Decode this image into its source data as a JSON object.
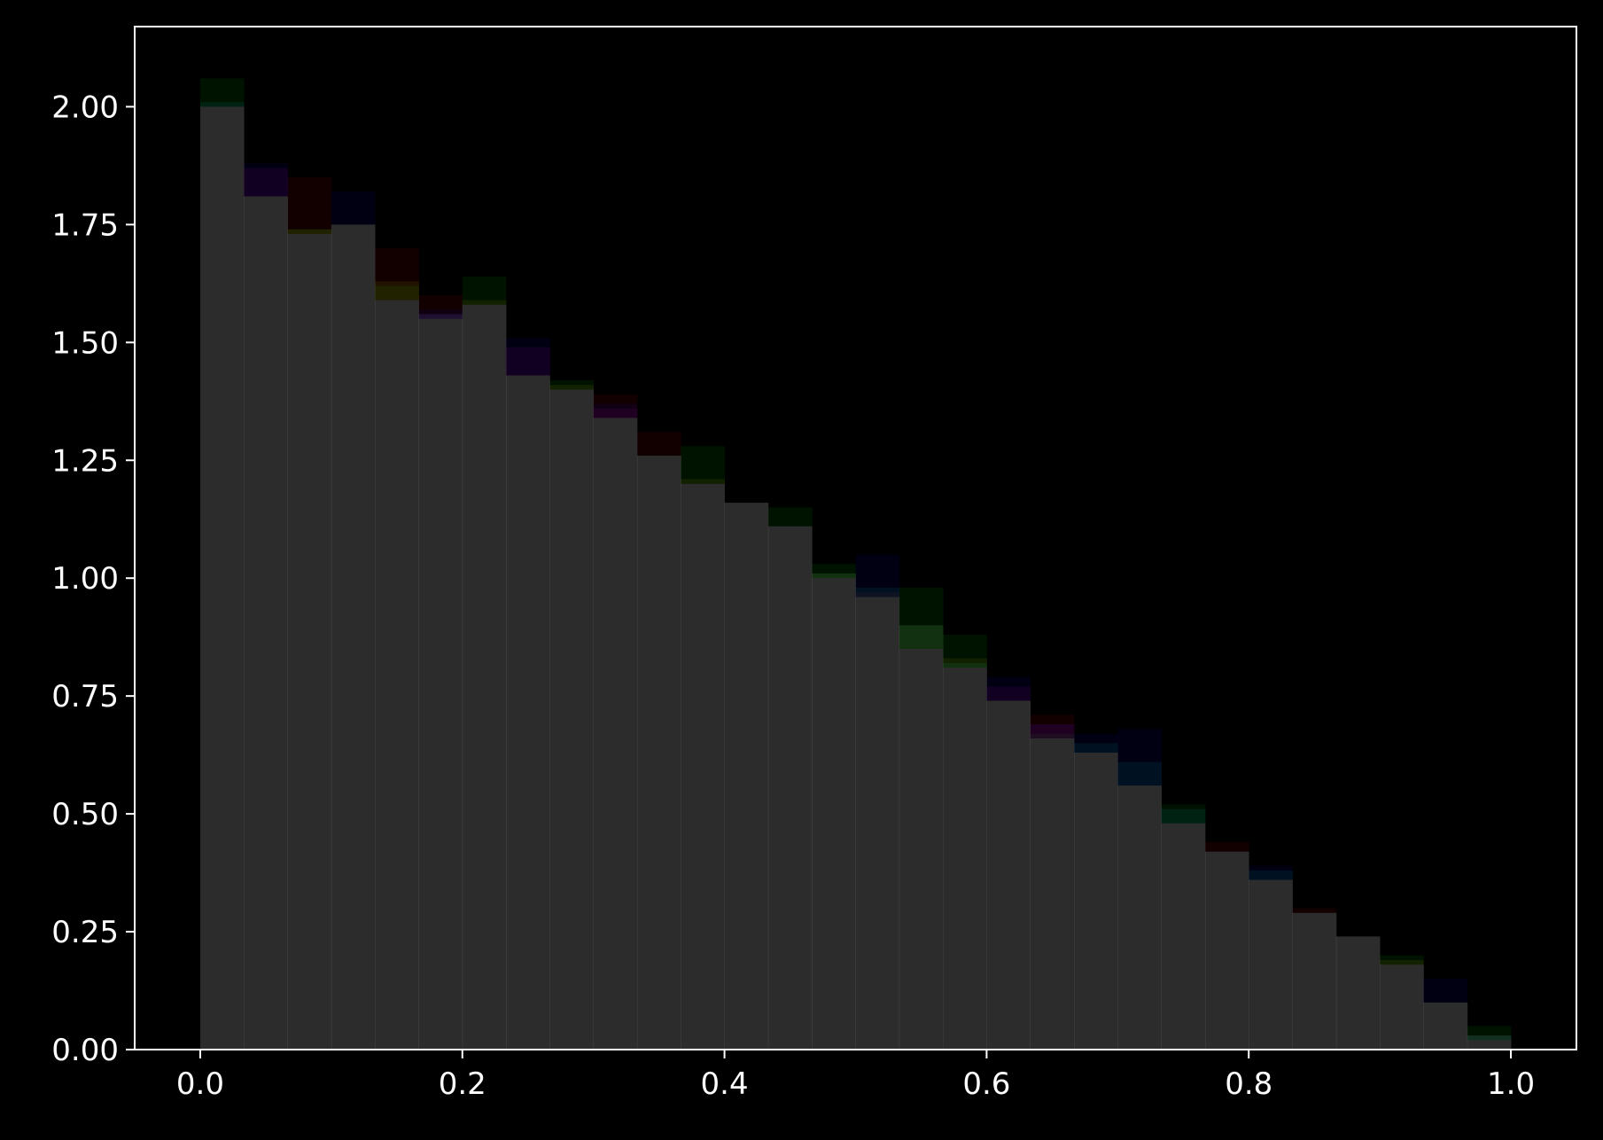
{
  "chart_data": {
    "type": "bar",
    "title": "",
    "xlabel": "",
    "ylabel": "",
    "xlim": [
      -0.05,
      1.05
    ],
    "ylim": [
      0,
      2.17
    ],
    "grid": false,
    "legend": "none",
    "background": "#000000",
    "axis_color": "#ffffff",
    "x_ticks": [
      {
        "value": 0.0,
        "label": "0.0"
      },
      {
        "value": 0.2,
        "label": "0.2"
      },
      {
        "value": 0.4,
        "label": "0.4"
      },
      {
        "value": 0.6,
        "label": "0.6"
      },
      {
        "value": 0.8,
        "label": "0.8"
      },
      {
        "value": 1.0,
        "label": "1.0"
      }
    ],
    "y_ticks": [
      {
        "value": 0.0,
        "label": "0.00"
      },
      {
        "value": 0.25,
        "label": "0.25"
      },
      {
        "value": 0.5,
        "label": "0.50"
      },
      {
        "value": 0.75,
        "label": "0.75"
      },
      {
        "value": 1.0,
        "label": "1.00"
      },
      {
        "value": 1.25,
        "label": "1.25"
      },
      {
        "value": 1.5,
        "label": "1.50"
      },
      {
        "value": 1.75,
        "label": "1.75"
      },
      {
        "value": 2.0,
        "label": "2.00"
      }
    ],
    "bin_edges": [
      0.0,
      0.0333,
      0.0667,
      0.1,
      0.1333,
      0.1667,
      0.2,
      0.2333,
      0.2667,
      0.3,
      0.3333,
      0.3667,
      0.4,
      0.4333,
      0.4667,
      0.5,
      0.5333,
      0.5667,
      0.6,
      0.6333,
      0.6667,
      0.7,
      0.7333,
      0.7667,
      0.8,
      0.8333,
      0.8667,
      0.9,
      0.9333,
      0.9667,
      1.0
    ],
    "series": [
      {
        "color": "#ff0000",
        "opacity": 0.07,
        "values": [
          2.0,
          1.81,
          1.85,
          1.75,
          1.7,
          1.6,
          1.58,
          1.43,
          1.4,
          1.39,
          1.31,
          1.2,
          1.16,
          1.11,
          1.0,
          0.97,
          0.85,
          0.81,
          0.74,
          0.71,
          0.63,
          0.56,
          0.48,
          0.44,
          0.36,
          0.3,
          0.24,
          0.18,
          0.1,
          0.02
        ]
      },
      {
        "color": "#00ff00",
        "opacity": 0.07,
        "values": [
          2.06,
          1.81,
          1.74,
          1.75,
          1.62,
          1.55,
          1.64,
          1.43,
          1.42,
          1.34,
          1.26,
          1.28,
          1.16,
          1.15,
          1.03,
          0.96,
          0.98,
          0.88,
          0.74,
          0.67,
          0.63,
          0.56,
          0.52,
          0.42,
          0.36,
          0.29,
          0.24,
          0.2,
          0.1,
          0.05
        ]
      },
      {
        "color": "#0000ff",
        "opacity": 0.07,
        "values": [
          2.0,
          1.88,
          1.73,
          1.82,
          1.59,
          1.57,
          1.58,
          1.51,
          1.4,
          1.37,
          1.26,
          1.2,
          1.16,
          1.11,
          1.0,
          1.05,
          0.85,
          0.81,
          0.79,
          0.69,
          0.67,
          0.68,
          0.48,
          0.42,
          0.39,
          0.29,
          0.24,
          0.18,
          0.15,
          0.03
        ]
      },
      {
        "color": "#00ffff",
        "opacity": 0.07,
        "values": [
          2.01,
          1.81,
          1.73,
          1.75,
          1.59,
          1.56,
          1.58,
          1.43,
          1.4,
          1.34,
          1.26,
          1.2,
          1.16,
          1.11,
          1.01,
          0.98,
          0.9,
          0.82,
          0.74,
          0.66,
          0.65,
          0.61,
          0.51,
          0.42,
          0.38,
          0.29,
          0.24,
          0.18,
          0.1,
          0.03
        ]
      },
      {
        "color": "#ff00ff",
        "opacity": 0.07,
        "values": [
          2.0,
          1.87,
          1.73,
          1.75,
          1.59,
          1.56,
          1.58,
          1.49,
          1.4,
          1.36,
          1.26,
          1.2,
          1.16,
          1.11,
          1.0,
          0.96,
          0.85,
          0.81,
          0.77,
          0.69,
          0.63,
          0.56,
          0.48,
          0.42,
          0.36,
          0.29,
          0.24,
          0.18,
          0.1,
          0.02
        ]
      },
      {
        "color": "#ffff00",
        "opacity": 0.07,
        "values": [
          2.0,
          1.81,
          1.74,
          1.75,
          1.63,
          1.55,
          1.59,
          1.43,
          1.41,
          1.34,
          1.26,
          1.21,
          1.16,
          1.11,
          1.01,
          0.96,
          0.9,
          0.83,
          0.74,
          0.66,
          0.63,
          0.56,
          0.48,
          0.42,
          0.36,
          0.29,
          0.24,
          0.19,
          0.1,
          0.03
        ]
      }
    ]
  }
}
